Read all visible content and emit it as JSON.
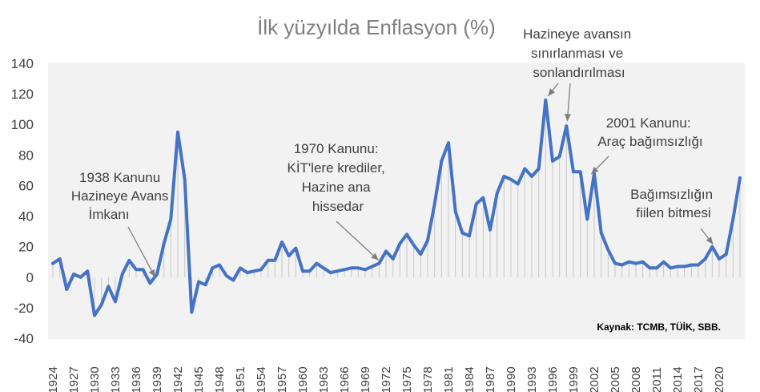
{
  "chart_data": {
    "type": "line",
    "title": "İlk yüzyılda Enflasyon (%)",
    "source": "Kaynak: TCMB, TÜİK, SBB.",
    "ylim": [
      -40,
      140
    ],
    "yticks": [
      "140",
      "120",
      "100",
      "80",
      "60",
      "40",
      "20",
      "0",
      "-20",
      "-40"
    ],
    "xticks": [
      "1924",
      "1927",
      "1930",
      "1933",
      "1936",
      "1939",
      "1942",
      "1945",
      "1948",
      "1951",
      "1954",
      "1957",
      "1960",
      "1963",
      "1966",
      "1969",
      "1972",
      "1975",
      "1978",
      "1981",
      "1984",
      "1987",
      "1990",
      "1993",
      "1996",
      "1999",
      "2002",
      "2005",
      "2008",
      "2011",
      "2014",
      "2017",
      "2020"
    ],
    "x_start": 1924,
    "x_end": 2023,
    "colors": {
      "line": "#4472c4",
      "drop": "#c8c8c8",
      "plot_bg": "#f2f2f2",
      "text": "#404040"
    },
    "drop_lines": true,
    "grid": false,
    "series": [
      {
        "values": [
          [
            1924,
            9
          ],
          [
            1925,
            12
          ],
          [
            1926,
            -8
          ],
          [
            1927,
            2
          ],
          [
            1928,
            0
          ],
          [
            1929,
            4
          ],
          [
            1930,
            -25
          ],
          [
            1931,
            -18
          ],
          [
            1932,
            -6
          ],
          [
            1933,
            -16
          ],
          [
            1934,
            2
          ],
          [
            1935,
            11
          ],
          [
            1936,
            5
          ],
          [
            1937,
            5
          ],
          [
            1938,
            -4
          ],
          [
            1939,
            2
          ],
          [
            1940,
            22
          ],
          [
            1941,
            38
          ],
          [
            1942,
            95
          ],
          [
            1943,
            64
          ],
          [
            1944,
            -23
          ],
          [
            1945,
            -3
          ],
          [
            1946,
            -5
          ],
          [
            1947,
            6
          ],
          [
            1948,
            8
          ],
          [
            1949,
            1
          ],
          [
            1950,
            -2
          ],
          [
            1951,
            6
          ],
          [
            1952,
            3
          ],
          [
            1953,
            4
          ],
          [
            1954,
            5
          ],
          [
            1955,
            11
          ],
          [
            1956,
            11
          ],
          [
            1957,
            23
          ],
          [
            1958,
            14
          ],
          [
            1959,
            19
          ],
          [
            1960,
            4
          ],
          [
            1961,
            4
          ],
          [
            1962,
            9
          ],
          [
            1963,
            6
          ],
          [
            1964,
            3
          ],
          [
            1965,
            4
          ],
          [
            1966,
            5
          ],
          [
            1967,
            6
          ],
          [
            1968,
            6
          ],
          [
            1969,
            5
          ],
          [
            1970,
            7
          ],
          [
            1971,
            9
          ],
          [
            1972,
            17
          ],
          [
            1973,
            12
          ],
          [
            1974,
            22
          ],
          [
            1975,
            28
          ],
          [
            1976,
            21
          ],
          [
            1977,
            15
          ],
          [
            1978,
            24
          ],
          [
            1979,
            48
          ],
          [
            1980,
            76
          ],
          [
            1981,
            88
          ],
          [
            1982,
            43
          ],
          [
            1983,
            29
          ],
          [
            1984,
            27
          ],
          [
            1985,
            48
          ],
          [
            1986,
            52
          ],
          [
            1987,
            31
          ],
          [
            1988,
            55
          ],
          [
            1989,
            66
          ],
          [
            1990,
            64
          ],
          [
            1991,
            61
          ],
          [
            1992,
            71
          ],
          [
            1993,
            66
          ],
          [
            1994,
            71
          ],
          [
            1995,
            116
          ],
          [
            1996,
            76
          ],
          [
            1997,
            79
          ],
          [
            1998,
            99
          ],
          [
            1999,
            69
          ],
          [
            2000,
            69
          ],
          [
            2001,
            38
          ],
          [
            2002,
            68
          ],
          [
            2003,
            29
          ],
          [
            2004,
            18
          ],
          [
            2005,
            9
          ],
          [
            2006,
            8
          ],
          [
            2007,
            10
          ],
          [
            2008,
            9
          ],
          [
            2009,
            10
          ],
          [
            2010,
            6
          ],
          [
            2011,
            6
          ],
          [
            2012,
            10
          ],
          [
            2013,
            6
          ],
          [
            2014,
            7
          ],
          [
            2015,
            7
          ],
          [
            2016,
            8
          ],
          [
            2017,
            8
          ],
          [
            2018,
            12
          ],
          [
            2019,
            20
          ],
          [
            2020,
            12
          ],
          [
            2021,
            15
          ],
          [
            2022,
            38
          ],
          [
            2023,
            65
          ]
        ]
      }
    ],
    "annotations": [
      {
        "lines": [
          "1938 Kanunu",
          "Hazineye Avans",
          "İmkanı"
        ],
        "target": [
          1938.5,
          -1
        ]
      },
      {
        "lines": [
          "1970 Kanunu:",
          "KİT'lere krediler,",
          "Hazine ana",
          "hissedar"
        ],
        "target": [
          1970,
          9
        ]
      },
      {
        "lines": [
          "Hazineye avansın",
          "sınırlanması ve",
          "sonlandırılması"
        ],
        "targets": [
          [
            1995,
            117
          ],
          [
            1998,
            100
          ]
        ]
      },
      {
        "lines": [
          "2001 Kanunu:",
          "Araç bağımsızlığı"
        ],
        "target": [
          2001,
          67
        ]
      },
      {
        "lines": [
          "Bağımsızlığın",
          "fiilen bitmesi"
        ],
        "target": [
          2019,
          20
        ]
      }
    ]
  }
}
